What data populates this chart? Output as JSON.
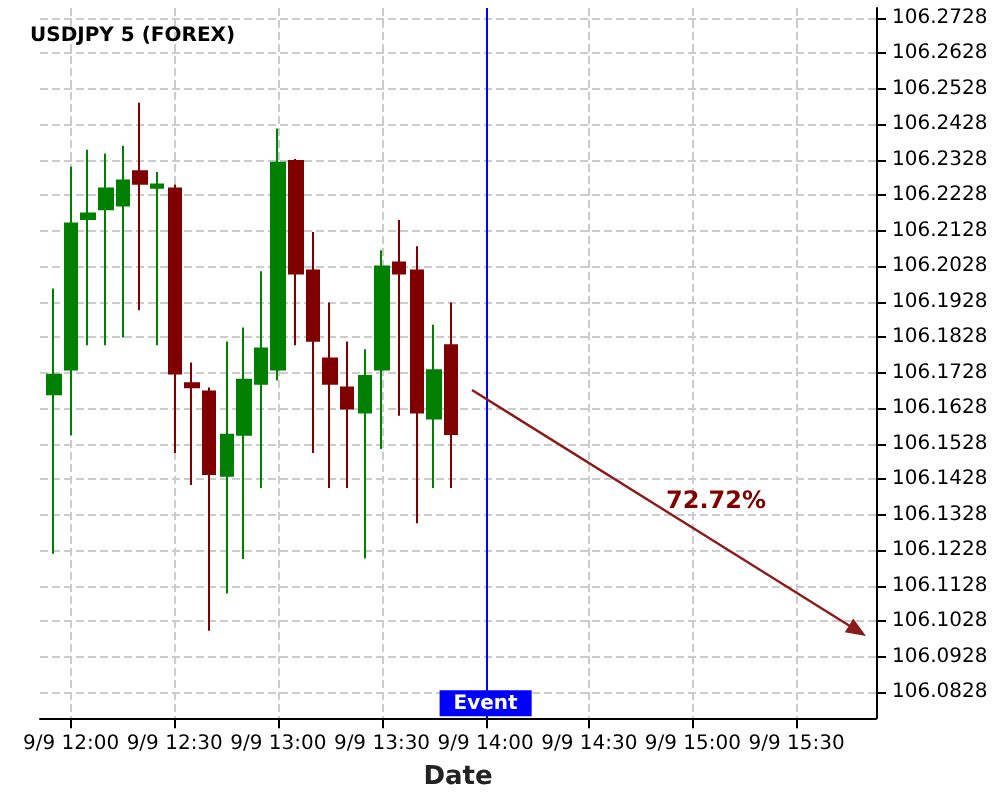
{
  "chart_data": {
    "type": "candlestick",
    "title": "USDJPY 5 (FOREX)",
    "xlabel": "Date",
    "x": [
      "--09-09T11:55",
      "--09-09T12:00",
      "--09-09T12:05",
      "--09-09T12:10",
      "--09-09T12:15",
      "--09-09T12:20",
      "--09-09T12:25",
      "--09-09T12:30",
      "--09-09T12:35",
      "--09-09T12:40",
      "--09-09T12:45",
      "--09-09T12:50",
      "--09-09T12:55",
      "--09-09T13:00",
      "--09-09T13:05",
      "--09-09T13:10",
      "--09-09T13:15",
      "--09-09T13:20",
      "--09-09T13:25",
      "--09-09T13:30",
      "--09-09T13:35",
      "--09-09T13:40",
      "--09-09T13:45",
      "--09-09T13:50"
    ],
    "ohlc": [
      [
        106.1667,
        106.1965,
        106.1218,
        106.1722
      ],
      [
        106.1737,
        106.2308,
        106.1552,
        106.2148
      ],
      [
        106.2161,
        106.2356,
        106.1805,
        106.2176
      ],
      [
        106.2188,
        106.2345,
        106.1805,
        106.2247
      ],
      [
        106.2199,
        106.2367,
        106.1827,
        106.2269
      ],
      [
        106.2295,
        106.2488,
        106.1904,
        106.226
      ],
      [
        106.2249,
        106.2293,
        106.1805,
        106.2258
      ],
      [
        106.2247,
        106.2258,
        106.1502,
        106.1726
      ],
      [
        106.1698,
        106.1757,
        106.1412,
        106.1687
      ],
      [
        106.1675,
        106.1686,
        106.1001,
        106.1443
      ],
      [
        106.1438,
        106.1816,
        106.1106,
        106.1553
      ],
      [
        106.1553,
        106.1855,
        106.1203,
        106.1708
      ],
      [
        106.1697,
        106.2014,
        106.1403,
        106.1796
      ],
      [
        106.1737,
        106.2416,
        106.1706,
        106.2319
      ],
      [
        106.2324,
        106.233,
        106.1805,
        106.2007
      ],
      [
        106.2016,
        106.2124,
        106.1502,
        106.1818
      ],
      [
        106.1768,
        106.1926,
        106.1403,
        106.1697
      ],
      [
        106.1686,
        106.1816,
        106.1403,
        106.1627
      ],
      [
        106.1616,
        106.1794,
        106.1205,
        106.1719
      ],
      [
        106.1737,
        106.2073,
        106.1513,
        106.2027
      ],
      [
        106.2038,
        106.2158,
        106.1607,
        106.2007
      ],
      [
        106.2016,
        106.2084,
        106.1304,
        106.1616
      ],
      [
        106.1599,
        106.1863,
        106.1403,
        106.1735
      ],
      [
        106.1805,
        106.1926,
        106.1403,
        106.1555
      ]
    ],
    "annotations": [
      "72.72%"
    ],
    "ref_lines": [
      {
        "axis": "x",
        "value": "--09-09T14:00",
        "label": "Event",
        "color": "#0000ff"
      }
    ],
    "xlim": [
      "--09-09T11:51",
      "--09-09T15:53"
    ],
    "xticks": [
      {
        "value": "--09-09T12:00",
        "label": "9/9 12:00"
      },
      {
        "value": "--09-09T12:30",
        "label": "9/9 12:30"
      },
      {
        "value": "--09-09T13:00",
        "label": "9/9 13:00"
      },
      {
        "value": "--09-09T13:30",
        "label": "9/9 13:30"
      },
      {
        "value": "--09-09T14:00",
        "label": "9/9 14:00"
      },
      {
        "value": "--09-09T14:30",
        "label": "9/9 14:30"
      },
      {
        "value": "--09-09T15:00",
        "label": "9/9 15:00"
      },
      {
        "value": "--09-09T15:30",
        "label": "9/9 15:30"
      }
    ],
    "ylim": [
      106.0755,
      106.2755
    ],
    "yticks": [
      106.0828,
      106.0928,
      106.1028,
      106.1128,
      106.1228,
      106.1328,
      106.1428,
      106.1528,
      106.1628,
      106.1728,
      106.1828,
      106.1928,
      106.2028,
      106.2128,
      106.2228,
      106.2328,
      106.2428,
      106.2528,
      106.2628,
      106.2728
    ],
    "grid": true
  }
}
